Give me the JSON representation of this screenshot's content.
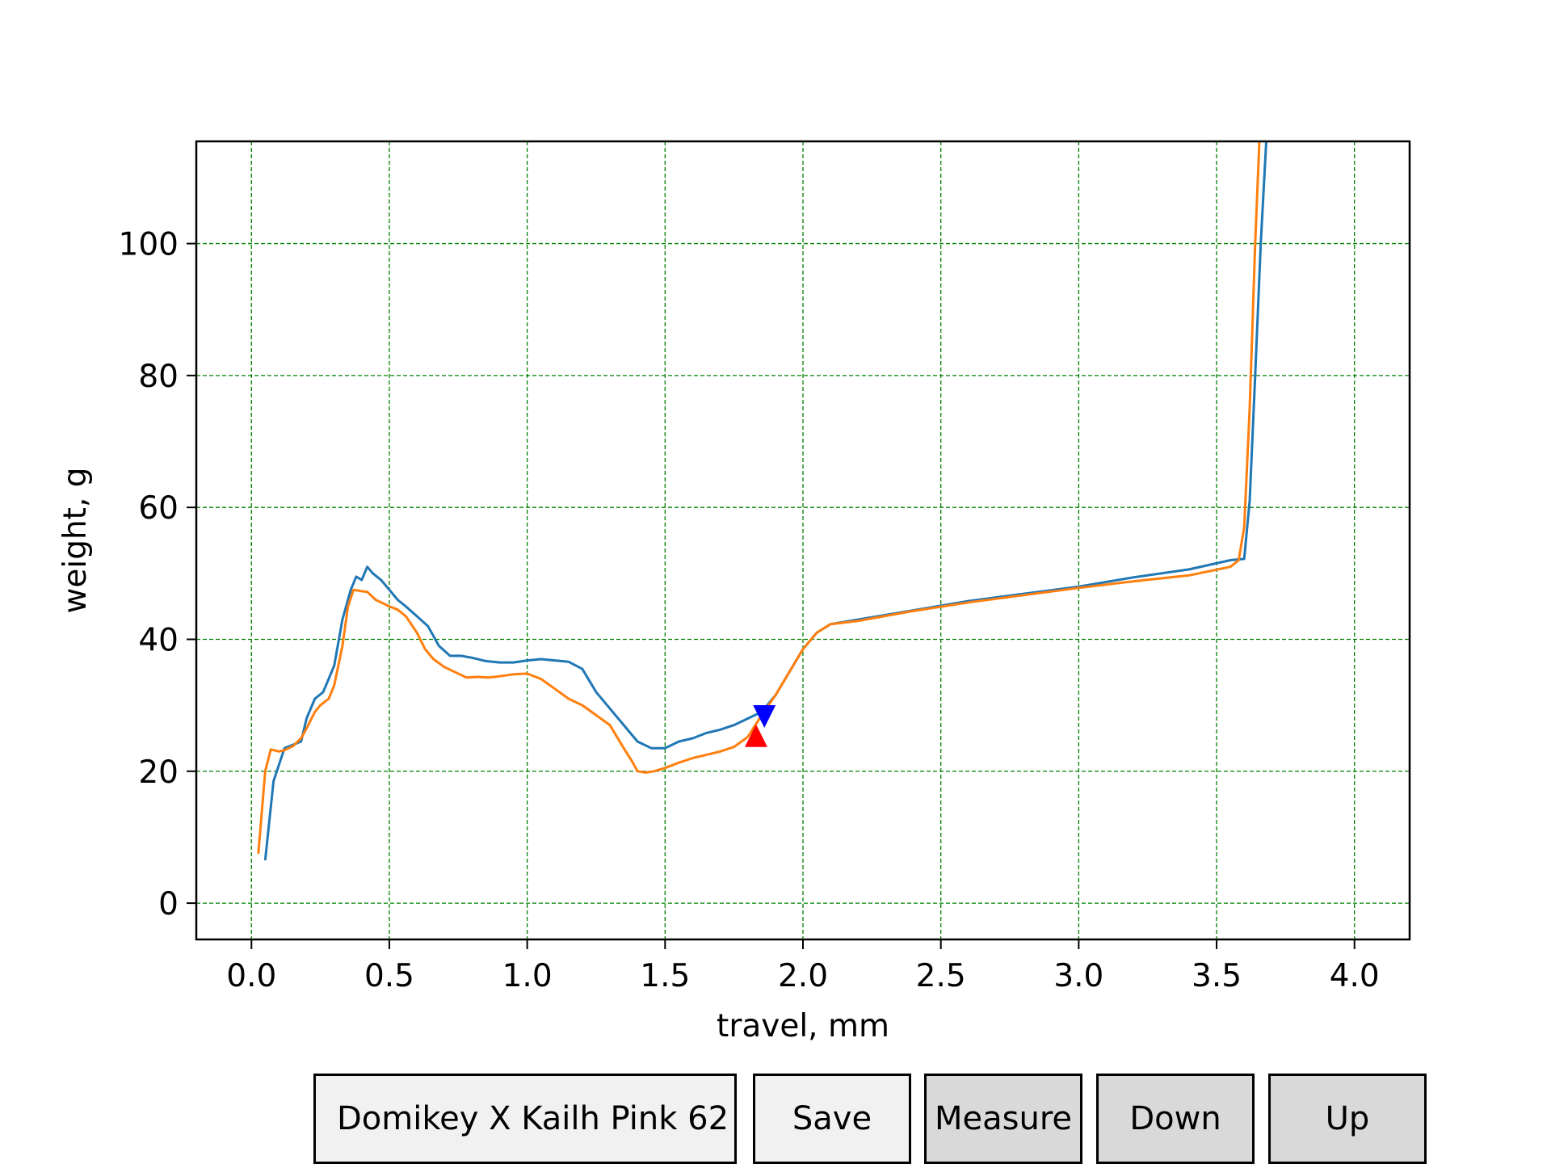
{
  "chart_data": {
    "type": "line",
    "title": "",
    "xlabel": "travel, mm",
    "ylabel": "weight, g",
    "xlim": [
      -0.2,
      4.2
    ],
    "ylim": [
      -5.5,
      115.5
    ],
    "xticks": [
      "0.0",
      "0.5",
      "1.0",
      "1.5",
      "2.0",
      "2.5",
      "3.0",
      "3.5",
      "4.0"
    ],
    "yticks": [
      "0",
      "20",
      "40",
      "60",
      "80",
      "100"
    ],
    "grid": true,
    "grid_color": "#008000",
    "series": [
      {
        "color": "#1f77b4",
        "x": [
          0.05,
          0.08,
          0.12,
          0.15,
          0.18,
          0.2,
          0.23,
          0.26,
          0.28,
          0.3,
          0.33,
          0.36,
          0.38,
          0.4,
          0.42,
          0.44,
          0.47,
          0.5,
          0.53,
          0.56,
          0.6,
          0.64,
          0.68,
          0.72,
          0.76,
          0.8,
          0.85,
          0.9,
          0.95,
          1.0,
          1.05,
          1.1,
          1.15,
          1.2,
          1.25,
          1.3,
          1.35,
          1.4,
          1.45,
          1.5,
          1.55,
          1.6,
          1.65,
          1.7,
          1.75,
          1.8,
          1.85,
          1.9,
          1.95,
          2.0,
          2.05,
          2.1,
          2.2,
          2.4,
          2.6,
          2.8,
          3.0,
          3.2,
          3.4,
          3.55,
          3.6,
          3.62,
          3.64,
          3.66,
          3.68
        ],
        "y": [
          6.5,
          18.5,
          23.5,
          24,
          24.5,
          28,
          31,
          32,
          34,
          36,
          43,
          47.5,
          49.5,
          49,
          51,
          50,
          49,
          47.5,
          46,
          45,
          43.5,
          42,
          39,
          37.5,
          37.5,
          37.2,
          36.7,
          36.5,
          36.5,
          36.8,
          37,
          36.8,
          36.6,
          35.5,
          32,
          29.5,
          27,
          24.5,
          23.5,
          23.5,
          24.5,
          25,
          25.8,
          26.3,
          27,
          28,
          29,
          31.5,
          35,
          38.5,
          41,
          42.3,
          43,
          44.4,
          45.8,
          46.9,
          48,
          49.4,
          50.6,
          52,
          52.2,
          61,
          80,
          100,
          115.5
        ]
      },
      {
        "color": "#ff7f0e",
        "x": [
          0.025,
          0.05,
          0.07,
          0.1,
          0.12,
          0.15,
          0.18,
          0.2,
          0.23,
          0.25,
          0.28,
          0.3,
          0.33,
          0.35,
          0.37,
          0.4,
          0.42,
          0.45,
          0.5,
          0.53,
          0.56,
          0.6,
          0.63,
          0.66,
          0.7,
          0.74,
          0.78,
          0.82,
          0.86,
          0.9,
          0.95,
          1.0,
          1.05,
          1.1,
          1.15,
          1.2,
          1.25,
          1.3,
          1.35,
          1.38,
          1.4,
          1.43,
          1.46,
          1.5,
          1.55,
          1.6,
          1.65,
          1.7,
          1.75,
          1.8,
          1.85,
          1.9,
          1.95,
          2.0,
          2.05,
          2.1,
          2.2,
          2.4,
          2.6,
          2.8,
          3.0,
          3.2,
          3.4,
          3.55,
          3.58,
          3.6,
          3.62,
          3.64,
          3.655
        ],
        "y": [
          7.5,
          20,
          23.3,
          23,
          23.2,
          23.8,
          25,
          26.5,
          29,
          30,
          31,
          33,
          39,
          45,
          47.5,
          47.3,
          47.2,
          46,
          45,
          44.5,
          43.5,
          41,
          38.5,
          37,
          35.8,
          35,
          34.2,
          34.3,
          34.2,
          34.4,
          34.7,
          34.8,
          34,
          32.5,
          31,
          30,
          28.5,
          27,
          23.5,
          21.5,
          20,
          19.8,
          20,
          20.5,
          21.3,
          22,
          22.5,
          23,
          23.7,
          25.2,
          28.5,
          31.5,
          35,
          38.5,
          41,
          42.3,
          42.8,
          44.3,
          45.6,
          46.7,
          47.8,
          48.8,
          49.7,
          51,
          52,
          57,
          75,
          100,
          115.5
        ]
      }
    ],
    "markers": [
      {
        "name": "down-marker",
        "shape": "triangle-down",
        "color": "#0000ff",
        "x": 1.86,
        "y": 28.3
      },
      {
        "name": "up-marker",
        "shape": "triangle-up",
        "color": "#ff0000",
        "x": 1.83,
        "y": 25.4
      }
    ]
  },
  "buttons": {
    "name_label": "Domikey X Kailh Pink 62",
    "save_label": "Save",
    "measure_label": "Measure",
    "down_label": "Down",
    "up_label": "Up"
  }
}
